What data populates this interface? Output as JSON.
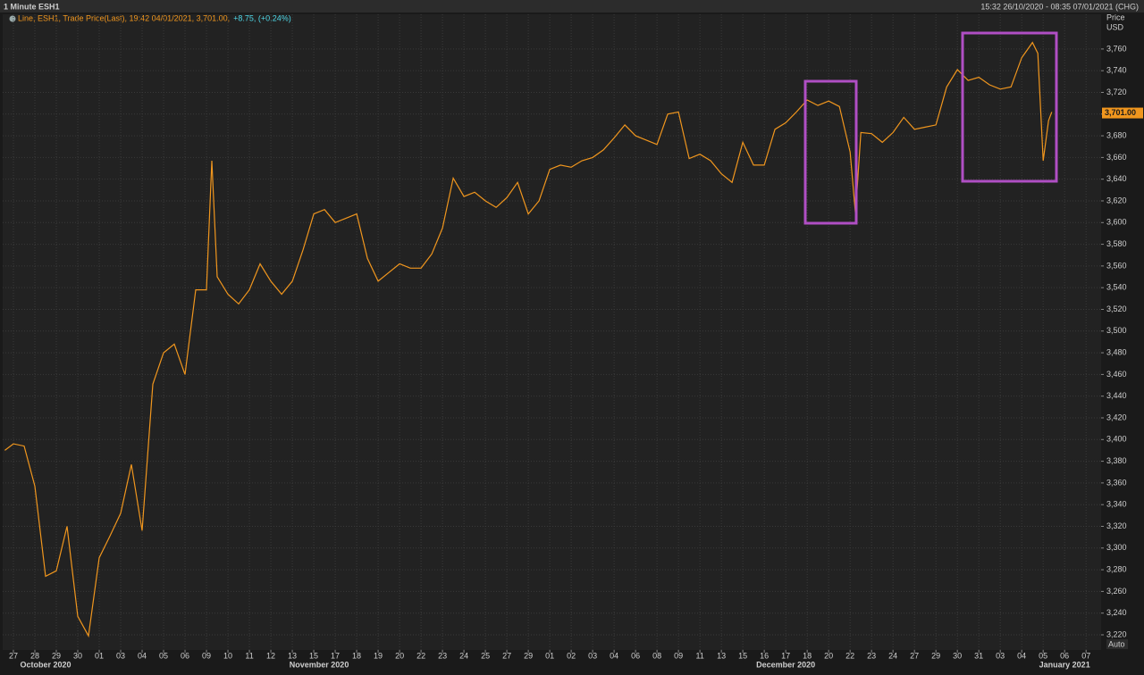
{
  "chart_data": {
    "type": "line",
    "title": "1 Minute ESH1",
    "time_range": "15:32 26/10/2020 - 08:35 07/01/2021 (CHG)",
    "y_label": "Price",
    "y_unit": "USD",
    "scale_mode": "Auto",
    "legend_change": "+8.75, (+0.24%)",
    "legend_change_color": "#4fd8e8",
    "last_value": 3701,
    "last_value_label": "3,701.00",
    "grid": true,
    "xlim": [
      -0.5,
      50.7
    ],
    "ylim": [
      3206,
      3792
    ],
    "x": [
      -0.4,
      0,
      0.5,
      1,
      1.5,
      2,
      2.5,
      3,
      3.5,
      4,
      4.5,
      5,
      5.5,
      6,
      6.5,
      7,
      7.5,
      8,
      8.5,
      9,
      9.25,
      9.5,
      10,
      10.5,
      11,
      11.5,
      12,
      12.5,
      13,
      13.5,
      14,
      14.5,
      15,
      15.5,
      16,
      16.5,
      17,
      17.5,
      18,
      18.5,
      19,
      19.5,
      20,
      20.5,
      21,
      21.5,
      22,
      22.5,
      23,
      23.5,
      24,
      24.5,
      25,
      25.5,
      26,
      26.5,
      27,
      27.5,
      28,
      28.5,
      29,
      29.5,
      30,
      30.5,
      31,
      31.5,
      32,
      32.5,
      33,
      33.5,
      34,
      34.5,
      35,
      35.5,
      36,
      36.5,
      37,
      37.5,
      38,
      38.5,
      39,
      39.25,
      39.5,
      40,
      40.5,
      41,
      41.5,
      42,
      42.5,
      43,
      43.5,
      44,
      44.5,
      45,
      45.5,
      46,
      46.5,
      47,
      47.5,
      47.75,
      48,
      48.25,
      48.4
    ],
    "series": [
      {
        "name": "Line, ESH1, Trade Price(Last), 19:42 04/01/2021, 3,701.00,",
        "color": "#f0961e",
        "values": [
          3390,
          3396,
          3394,
          3357,
          3274,
          3279,
          3320,
          3237,
          3219,
          3291,
          3311,
          3332,
          3377,
          3316,
          3451,
          3480,
          3488,
          3460,
          3538,
          3538,
          3657,
          3550,
          3534,
          3525,
          3538,
          3562,
          3546,
          3534,
          3546,
          3575,
          3608,
          3612,
          3600,
          3604,
          3608,
          3567,
          3546,
          3554,
          3562,
          3558,
          3558,
          3571,
          3595,
          3641,
          3624,
          3628,
          3620,
          3614,
          3623,
          3637,
          3608,
          3620,
          3649,
          3653,
          3651,
          3657,
          3660,
          3667,
          3678,
          3690,
          3680,
          3676,
          3672,
          3700,
          3702,
          3659,
          3663,
          3657,
          3645,
          3637,
          3674,
          3653,
          3653,
          3686,
          3692,
          3702,
          3713,
          3708,
          3712,
          3707,
          3665,
          3608,
          3683,
          3682,
          3674,
          3683,
          3697,
          3686,
          3688,
          3690,
          3725,
          3741,
          3731,
          3734,
          3727,
          3723,
          3725,
          3752,
          3766,
          3756,
          3657,
          3694,
          3702
        ]
      }
    ],
    "xticks": [
      {
        "value": 0,
        "label": "27"
      },
      {
        "value": 1,
        "label": "28"
      },
      {
        "value": 2,
        "label": "29"
      },
      {
        "value": 3,
        "label": "30"
      },
      {
        "value": 4,
        "label": "01"
      },
      {
        "value": 5,
        "label": "03"
      },
      {
        "value": 6,
        "label": "04"
      },
      {
        "value": 7,
        "label": "05"
      },
      {
        "value": 8,
        "label": "06"
      },
      {
        "value": 9,
        "label": "09"
      },
      {
        "value": 10,
        "label": "10"
      },
      {
        "value": 11,
        "label": "11"
      },
      {
        "value": 12,
        "label": "12"
      },
      {
        "value": 13,
        "label": "13"
      },
      {
        "value": 14,
        "label": "15"
      },
      {
        "value": 15,
        "label": "17"
      },
      {
        "value": 16,
        "label": "18"
      },
      {
        "value": 17,
        "label": "19"
      },
      {
        "value": 18,
        "label": "20"
      },
      {
        "value": 19,
        "label": "22"
      },
      {
        "value": 20,
        "label": "23"
      },
      {
        "value": 21,
        "label": "24"
      },
      {
        "value": 22,
        "label": "25"
      },
      {
        "value": 23,
        "label": "27"
      },
      {
        "value": 24,
        "label": "29"
      },
      {
        "value": 25,
        "label": "01"
      },
      {
        "value": 26,
        "label": "02"
      },
      {
        "value": 27,
        "label": "03"
      },
      {
        "value": 28,
        "label": "04"
      },
      {
        "value": 29,
        "label": "06"
      },
      {
        "value": 30,
        "label": "08"
      },
      {
        "value": 31,
        "label": "09"
      },
      {
        "value": 32,
        "label": "11"
      },
      {
        "value": 33,
        "label": "13"
      },
      {
        "value": 34,
        "label": "15"
      },
      {
        "value": 35,
        "label": "16"
      },
      {
        "value": 36,
        "label": "17"
      },
      {
        "value": 37,
        "label": "18"
      },
      {
        "value": 38,
        "label": "20"
      },
      {
        "value": 39,
        "label": "22"
      },
      {
        "value": 40,
        "label": "23"
      },
      {
        "value": 41,
        "label": "24"
      },
      {
        "value": 42,
        "label": "27"
      },
      {
        "value": 43,
        "label": "29"
      },
      {
        "value": 44,
        "label": "30"
      },
      {
        "value": 45,
        "label": "31"
      },
      {
        "value": 46,
        "label": "03"
      },
      {
        "value": 47,
        "label": "04"
      },
      {
        "value": 48,
        "label": "05"
      },
      {
        "value": 49,
        "label": "06"
      },
      {
        "value": 50,
        "label": "07"
      }
    ],
    "x_groups": [
      {
        "value": 1.5,
        "label": "October 2020"
      },
      {
        "value": 14.25,
        "label": "November 2020"
      },
      {
        "value": 36,
        "label": "December 2020"
      },
      {
        "value": 49,
        "label": "January 2021"
      }
    ],
    "yticks": [
      {
        "value": 3220,
        "label": "3,220"
      },
      {
        "value": 3240,
        "label": "3,240"
      },
      {
        "value": 3260,
        "label": "3,260"
      },
      {
        "value": 3280,
        "label": "3,280"
      },
      {
        "value": 3300,
        "label": "3,300"
      },
      {
        "value": 3320,
        "label": "3,320"
      },
      {
        "value": 3340,
        "label": "3,340"
      },
      {
        "value": 3360,
        "label": "3,360"
      },
      {
        "value": 3380,
        "label": "3,380"
      },
      {
        "value": 3400,
        "label": "3,400"
      },
      {
        "value": 3420,
        "label": "3,420"
      },
      {
        "value": 3440,
        "label": "3,440"
      },
      {
        "value": 3460,
        "label": "3,460"
      },
      {
        "value": 3480,
        "label": "3,480"
      },
      {
        "value": 3500,
        "label": "3,500"
      },
      {
        "value": 3520,
        "label": "3,520"
      },
      {
        "value": 3540,
        "label": "3,540"
      },
      {
        "value": 3560,
        "label": "3,560"
      },
      {
        "value": 3580,
        "label": "3,580"
      },
      {
        "value": 3600,
        "label": "3,600"
      },
      {
        "value": 3620,
        "label": "3,620"
      },
      {
        "value": 3640,
        "label": "3,640"
      },
      {
        "value": 3660,
        "label": "3,660"
      },
      {
        "value": 3680,
        "label": "3,680"
      },
      {
        "value": 3700,
        "label": "3,700"
      },
      {
        "value": 3720,
        "label": "3,720"
      },
      {
        "value": 3740,
        "label": "3,740"
      },
      {
        "value": 3760,
        "label": "3,760"
      }
    ]
  }
}
